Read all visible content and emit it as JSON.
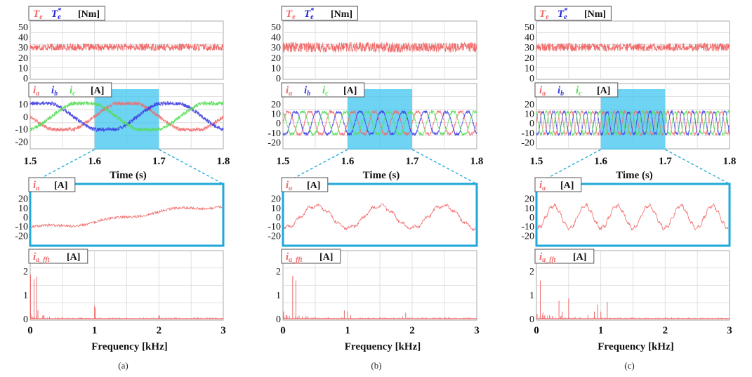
{
  "figure": {
    "subfigure_labels": [
      "(a)",
      "(b)",
      "(c)"
    ],
    "colors": {
      "Te": "#f06a6a",
      "Te_ref": "#2222dd",
      "ia": "#f06a6a",
      "ib": "#3a3ae0",
      "ic": "#55dd55",
      "highlight": "#3fc4f0",
      "zoom_frame": "#1fa8d8",
      "grid": "#d8d8d8"
    }
  },
  "chart_data": [
    {
      "panel": "(a)",
      "torque": {
        "type": "line",
        "legend": [
          {
            "symbol": "T",
            "sub": "e",
            "sup": "",
            "color_key": "Te"
          },
          {
            "symbol": "T",
            "sub": "e",
            "sup": "*",
            "color_key": "Te_ref"
          }
        ],
        "unit": "[Nm]",
        "yticks": [
          "50",
          "40",
          "30",
          "20",
          "10",
          "0"
        ],
        "ylim": [
          0,
          50
        ],
        "xlim": [
          1.5,
          1.8
        ],
        "series": [
          {
            "key": "Te",
            "mean": 30,
            "ripple": 3.5
          }
        ]
      },
      "currents": {
        "type": "line",
        "legend": [
          {
            "symbol": "i",
            "sub": "a",
            "color_key": "ia"
          },
          {
            "symbol": "i",
            "sub": "b",
            "color_key": "ib"
          },
          {
            "symbol": "i",
            "sub": "c",
            "color_key": "ic"
          }
        ],
        "unit": "[A]",
        "yticks": [
          "10",
          "0",
          "-10",
          "-20"
        ],
        "ylim": [
          -26,
          14
        ],
        "xlim": [
          1.5,
          1.8
        ],
        "amplitude": 11,
        "fundamental_hz": 5,
        "highlight": [
          1.6,
          1.7
        ],
        "xticks": [
          "1.5",
          "1.6",
          "1.7",
          "1.8"
        ],
        "xlabel": "Time (s)"
      },
      "zoom": {
        "type": "line",
        "legend": [
          {
            "symbol": "i",
            "sub": "a",
            "color_key": "ia"
          }
        ],
        "unit": "[A]",
        "yticks": [
          "20",
          "10",
          "0",
          "-10",
          "-20"
        ],
        "ylim": [
          -25,
          25
        ],
        "xlim": [
          1.6,
          1.7
        ],
        "amplitude": 11,
        "fundamental_hz": 5
      },
      "fft": {
        "type": "bar",
        "legend": [
          {
            "symbol": "i",
            "sub": "a_fft",
            "color_key": "ia"
          }
        ],
        "unit": "[A]",
        "yticks": [
          "2",
          "1",
          "0"
        ],
        "ylim": [
          0,
          2.5
        ],
        "xlim": [
          0,
          3
        ],
        "xticks": [
          "0",
          "1",
          "2",
          "3"
        ],
        "xlabel": "Frequency [kHz]",
        "peaks": [
          [
            0.005,
            1.85
          ],
          [
            0.06,
            1.65
          ],
          [
            0.1,
            1.75
          ],
          [
            0.12,
            0.35
          ],
          [
            0.2,
            0.15
          ],
          [
            0.3,
            0.08
          ],
          [
            0.5,
            0.08
          ],
          [
            0.8,
            0.05
          ],
          [
            1.0,
            0.55
          ],
          [
            1.01,
            0.45
          ],
          [
            1.5,
            0.04
          ],
          [
            2.0,
            0.15
          ],
          [
            2.01,
            0.12
          ],
          [
            2.5,
            0.03
          ]
        ]
      }
    },
    {
      "panel": "(b)",
      "torque": {
        "type": "line",
        "legend": [
          {
            "symbol": "T",
            "sub": "e",
            "sup": "",
            "color_key": "Te"
          },
          {
            "symbol": "T",
            "sub": "e",
            "sup": "*",
            "color_key": "Te_ref"
          }
        ],
        "unit": "[Nm]",
        "yticks": [
          "50",
          "40",
          "30",
          "20",
          "10",
          "0"
        ],
        "ylim": [
          0,
          50
        ],
        "xlim": [
          1.5,
          1.8
        ],
        "series": [
          {
            "key": "Te",
            "mean": 30,
            "ripple": 5
          }
        ]
      },
      "currents": {
        "type": "line",
        "legend": [
          {
            "symbol": "i",
            "sub": "a",
            "color_key": "ia"
          },
          {
            "symbol": "i",
            "sub": "b",
            "color_key": "ib"
          },
          {
            "symbol": "i",
            "sub": "c",
            "color_key": "ic"
          }
        ],
        "unit": "[A]",
        "yticks": [
          "20",
          "10",
          "0",
          "-10",
          "-20"
        ],
        "ylim": [
          -27,
          25
        ],
        "xlim": [
          1.5,
          1.8
        ],
        "amplitude": 12,
        "fundamental_hz": 30,
        "highlight": [
          1.6,
          1.7
        ],
        "xticks": [
          "1.5",
          "1.6",
          "1.7",
          "1.8"
        ],
        "xlabel": "Time (s)"
      },
      "zoom": {
        "type": "line",
        "legend": [
          {
            "symbol": "i",
            "sub": "a",
            "color_key": "ia"
          }
        ],
        "unit": "[A]",
        "yticks": [
          "20",
          "10",
          "0",
          "-10",
          "-20"
        ],
        "ylim": [
          -25,
          25
        ],
        "xlim": [
          1.6,
          1.7
        ],
        "amplitude": 12,
        "fundamental_hz": 30
      },
      "fft": {
        "type": "bar",
        "legend": [
          {
            "symbol": "i",
            "sub": "a_fft",
            "color_key": "ia"
          }
        ],
        "unit": "[A]",
        "yticks": [
          "2",
          "1",
          "0"
        ],
        "ylim": [
          0,
          2.5
        ],
        "xlim": [
          0,
          3
        ],
        "xticks": [
          "0",
          "1",
          "2",
          "3"
        ],
        "xlabel": "Frequency [kHz]",
        "peaks": [
          [
            0.01,
            0.3
          ],
          [
            0.05,
            0.15
          ],
          [
            0.1,
            0.12
          ],
          [
            0.15,
            1.8
          ],
          [
            0.2,
            1.6
          ],
          [
            0.3,
            0.1
          ],
          [
            0.5,
            0.08
          ],
          [
            0.7,
            0.06
          ],
          [
            0.95,
            0.35
          ],
          [
            1.0,
            0.3
          ],
          [
            1.05,
            0.15
          ],
          [
            1.5,
            0.06
          ],
          [
            1.85,
            0.1
          ],
          [
            1.9,
            0.25
          ],
          [
            2.0,
            0.08
          ],
          [
            2.5,
            0.05
          ],
          [
            2.8,
            0.04
          ]
        ]
      }
    },
    {
      "panel": "(c)",
      "torque": {
        "type": "line",
        "legend": [
          {
            "symbol": "T",
            "sub": "e",
            "sup": "",
            "color_key": "Te"
          },
          {
            "symbol": "T",
            "sub": "e",
            "sup": "*",
            "color_key": "Te_ref"
          }
        ],
        "unit": "[Nm]",
        "yticks": [
          "50",
          "40",
          "30",
          "20",
          "10",
          "0"
        ],
        "ylim": [
          0,
          50
        ],
        "xlim": [
          1.5,
          1.8
        ],
        "series": [
          {
            "key": "Te",
            "mean": 30,
            "ripple": 4
          }
        ]
      },
      "currents": {
        "type": "line",
        "legend": [
          {
            "symbol": "i",
            "sub": "a",
            "color_key": "ia"
          },
          {
            "symbol": "i",
            "sub": "b",
            "color_key": "ib"
          },
          {
            "symbol": "i",
            "sub": "c",
            "color_key": "ic"
          }
        ],
        "unit": "[A]",
        "yticks": [
          "20",
          "10",
          "0",
          "-10",
          "-20"
        ],
        "ylim": [
          -27,
          25
        ],
        "xlim": [
          1.5,
          1.8
        ],
        "amplitude": 12,
        "fundamental_hz": 60,
        "highlight": [
          1.6,
          1.7
        ],
        "xticks": [
          "1.5",
          "1.6",
          "1.7",
          "1.8"
        ],
        "xlabel": "Time (s)"
      },
      "zoom": {
        "type": "line",
        "legend": [
          {
            "symbol": "i",
            "sub": "a",
            "color_key": "ia"
          }
        ],
        "unit": "[A]",
        "yticks": [
          "20",
          "10",
          "0",
          "-10",
          "-20"
        ],
        "ylim": [
          -25,
          25
        ],
        "xlim": [
          1.6,
          1.7
        ],
        "amplitude": 12,
        "fundamental_hz": 60
      },
      "fft": {
        "type": "bar",
        "legend": [
          {
            "symbol": "i",
            "sub": "a_fft",
            "color_key": "ia"
          }
        ],
        "unit": "[A]",
        "yticks": [
          "2",
          "1",
          "0"
        ],
        "ylim": [
          0,
          2.5
        ],
        "xlim": [
          0,
          3
        ],
        "xticks": [
          "0",
          "1",
          "2",
          "3"
        ],
        "xlabel": "Frequency [kHz]",
        "peaks": [
          [
            0.01,
            0.2
          ],
          [
            0.06,
            1.6
          ],
          [
            0.1,
            0.25
          ],
          [
            0.2,
            0.15
          ],
          [
            0.35,
            0.75
          ],
          [
            0.4,
            0.3
          ],
          [
            0.5,
            0.85
          ],
          [
            0.6,
            0.08
          ],
          [
            0.8,
            0.15
          ],
          [
            0.9,
            0.3
          ],
          [
            0.95,
            0.6
          ],
          [
            1.0,
            0.3
          ],
          [
            1.1,
            0.7
          ],
          [
            1.5,
            0.08
          ],
          [
            2.0,
            0.06
          ],
          [
            2.1,
            0.05
          ],
          [
            2.6,
            0.04
          ]
        ]
      }
    }
  ]
}
